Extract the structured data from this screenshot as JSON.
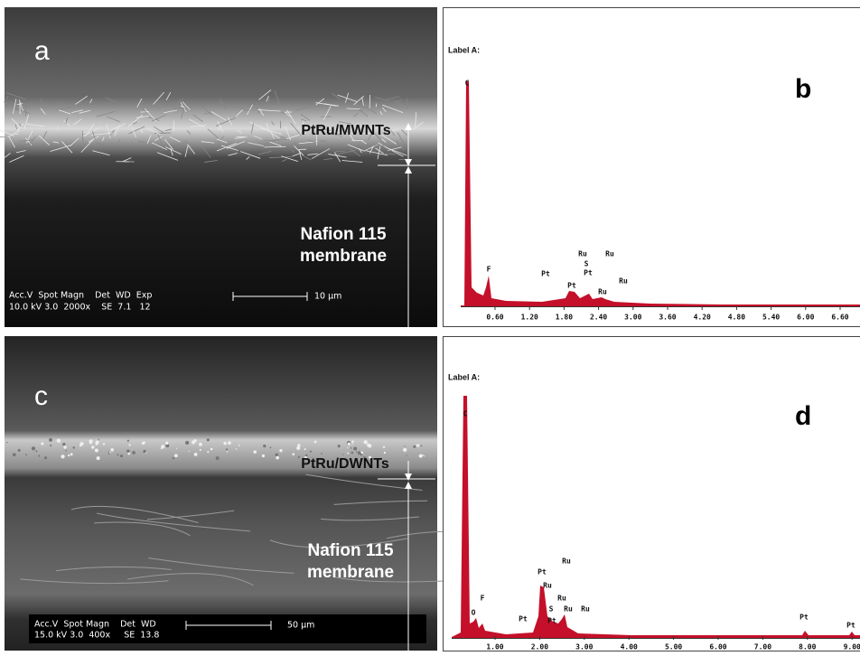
{
  "panels": [
    {
      "letter": "a",
      "layer_label": "PtRu/MWNTs",
      "membrane_label": [
        "Nafion 115",
        "membrane"
      ],
      "info_header": "Acc.V  Spot Magn    Det  WD  Exp",
      "info_values": "10.0 kV 3.0  2000x    SE  7.1   12",
      "scale_bar": "10 µm"
    },
    {
      "letter": "b",
      "label": "Label A:",
      "peaks": [
        "C",
        "F",
        "Pt",
        "Ru",
        "S",
        "Pt",
        "Ru",
        "Pt",
        "Ru",
        "Ru"
      ],
      "x_ticks": [
        "0.60",
        "1.20",
        "1.80",
        "2.40",
        "3.00",
        "3.60",
        "4.20",
        "4.80",
        "5.40",
        "6.00",
        "6.60"
      ]
    },
    {
      "letter": "c",
      "layer_label": "PtRu/DWNTs",
      "membrane_label": [
        "Nafion 115",
        "membrane"
      ],
      "info_header": "Acc.V  Spot Magn    Det  WD",
      "info_values": "15.0 kV 3.0  400x     SE  13.8",
      "scale_bar": "50 µm"
    },
    {
      "letter": "d",
      "label": "Label A:",
      "peaks": [
        "C",
        "O",
        "F",
        "Pt",
        "Ru",
        "Ru",
        "Ru",
        "S",
        "Ru",
        "Pt",
        "Pt",
        "Ru",
        "Pt",
        "Pt"
      ],
      "x_ticks": [
        "1.00",
        "2.00",
        "3.00",
        "4.00",
        "5.00",
        "6.00",
        "7.00",
        "8.00",
        "9.00"
      ]
    }
  ]
}
